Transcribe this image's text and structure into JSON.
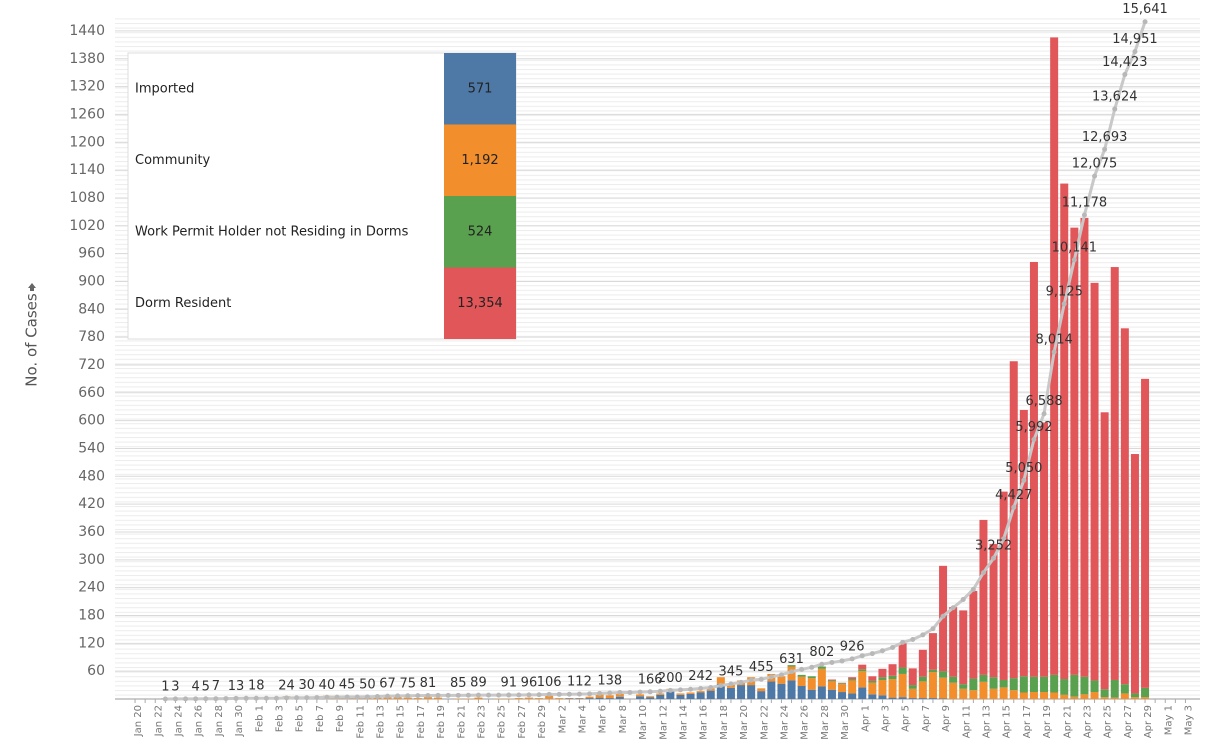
{
  "chart_data": {
    "type": "bar",
    "y_label": "No. of Cases",
    "categories": [
      "Jan 20",
      null,
      "Jan 22",
      null,
      "Jan 24",
      null,
      "Jan 26",
      null,
      "Jan 28",
      null,
      "Jan 30",
      null,
      "Feb 1",
      null,
      "Feb 3",
      null,
      "Feb 5",
      null,
      "Feb 7",
      null,
      "Feb 9",
      null,
      "Feb 11",
      null,
      "Feb 13",
      null,
      "Feb 15",
      null,
      "Feb 17",
      null,
      "Feb 19",
      null,
      "Feb 21",
      null,
      "Feb 23",
      null,
      "Feb 25",
      null,
      "Feb 27",
      null,
      "Feb 29",
      null,
      "Mar 2",
      null,
      "Mar 4",
      null,
      "Mar 6",
      null,
      "Mar 8",
      null,
      "Mar 10",
      null,
      "Mar 12",
      null,
      "Mar 14",
      null,
      "Mar 16",
      null,
      "Mar 18",
      null,
      "Mar 20",
      null,
      "Mar 22",
      null,
      "Mar 24",
      null,
      "Mar 26",
      null,
      "Mar 28",
      null,
      "Mar 30",
      null,
      "Apr 1",
      null,
      "Apr 3",
      null,
      "Apr 5",
      null,
      "Apr 7",
      null,
      "Apr 9",
      null,
      "Apr 11",
      null,
      "Apr 13",
      null,
      "Apr 15",
      null,
      "Apr 17",
      null,
      "Apr 19",
      null,
      "Apr 21",
      null,
      "Apr 23",
      null,
      "Apr 25",
      null,
      "Apr 27",
      null,
      "Apr 29",
      null,
      "May 1",
      null,
      "May 3"
    ],
    "series": [
      {
        "name": "Imported",
        "color": "#4e79a7",
        "total": 571,
        "values": [
          0,
          0,
          0,
          1,
          2,
          0,
          1,
          1,
          2,
          3,
          3,
          3,
          0,
          0,
          0,
          0,
          0,
          0,
          0,
          0,
          0,
          0,
          0,
          0,
          0,
          0,
          0,
          0,
          0,
          0,
          0,
          0,
          0,
          0,
          0,
          0,
          0,
          0,
          0,
          0,
          0,
          0,
          0,
          1,
          1,
          2,
          3,
          2,
          5,
          0,
          6,
          4,
          9,
          17,
          9,
          11,
          14,
          18,
          33,
          24,
          30,
          30,
          17,
          38,
          33,
          40,
          28,
          20,
          27,
          20,
          15,
          12,
          25,
          10,
          8,
          3,
          4,
          2,
          2,
          2,
          1,
          0,
          0,
          0,
          0,
          0,
          0,
          0,
          0,
          0,
          0,
          0,
          0,
          0,
          0,
          0,
          0,
          0,
          0,
          0,
          0,
          null,
          null,
          null,
          null
        ]
      },
      {
        "name": "Community",
        "color": "#f28e2b",
        "total": {
          "value": 1192,
          "label": "1,192"
        },
        "values": [
          0,
          0,
          0,
          0,
          0,
          0,
          0,
          0,
          0,
          0,
          0,
          0,
          2,
          0,
          0,
          6,
          4,
          2,
          3,
          7,
          3,
          2,
          2,
          3,
          8,
          9,
          5,
          3,
          2,
          4,
          3,
          0,
          1,
          1,
          3,
          0,
          1,
          1,
          2,
          3,
          2,
          8,
          2,
          1,
          1,
          3,
          10,
          6,
          7,
          0,
          4,
          2,
          3,
          5,
          3,
          3,
          3,
          5,
          14,
          8,
          10,
          17,
          6,
          16,
          16,
          30,
          20,
          25,
          38,
          18,
          17,
          28,
          35,
          25,
          33,
          40,
          50,
          20,
          36,
          56,
          45,
          35,
          22,
          19,
          37,
          22,
          25,
          19,
          14,
          15,
          15,
          14,
          9,
          5,
          10,
          15,
          4,
          3,
          12,
          4,
          4,
          null,
          null,
          null,
          null
        ]
      },
      {
        "name": "Work Permit Holder not Residing in Dorms",
        "color": "#59a14f",
        "total": 524,
        "values": [
          0,
          0,
          0,
          0,
          0,
          0,
          0,
          0,
          0,
          0,
          0,
          0,
          0,
          0,
          0,
          0,
          0,
          0,
          0,
          0,
          0,
          0,
          0,
          0,
          0,
          0,
          0,
          0,
          0,
          0,
          0,
          0,
          0,
          0,
          0,
          0,
          0,
          0,
          0,
          0,
          0,
          0,
          0,
          0,
          0,
          0,
          0,
          0,
          0,
          0,
          0,
          0,
          0,
          0,
          0,
          0,
          0,
          0,
          0,
          0,
          0,
          0,
          0,
          0,
          0,
          3,
          4,
          4,
          5,
          2,
          2,
          3,
          4,
          4,
          6,
          7,
          14,
          8,
          10,
          5,
          14,
          13,
          10,
          25,
          15,
          25,
          16,
          26,
          35,
          33,
          33,
          38,
          34,
          47,
          38,
          25,
          17,
          38,
          20,
          8,
          20,
          null,
          null,
          null,
          null
        ]
      },
      {
        "name": "Dorm Resident",
        "color": "#e15759",
        "total": {
          "value": 13354,
          "label": "13,354"
        },
        "values": [
          0,
          0,
          0,
          0,
          0,
          0,
          0,
          0,
          0,
          0,
          0,
          0,
          0,
          0,
          0,
          0,
          0,
          0,
          0,
          0,
          0,
          0,
          0,
          0,
          0,
          0,
          0,
          0,
          0,
          0,
          0,
          0,
          0,
          0,
          0,
          0,
          0,
          0,
          0,
          0,
          0,
          0,
          0,
          0,
          0,
          0,
          0,
          0,
          0,
          0,
          0,
          0,
          0,
          0,
          0,
          0,
          0,
          0,
          0,
          0,
          0,
          0,
          0,
          0,
          0,
          0,
          0,
          0,
          0,
          2,
          1,
          4,
          10,
          10,
          18,
          25,
          52,
          36,
          58,
          79,
          227,
          150,
          159,
          189,
          334,
          287,
          406,
          683,
          574,
          894,
          548,
          1374,
          1068,
          964,
          989,
          857,
          597,
          890,
          767,
          516,
          666,
          null,
          null,
          null,
          null
        ]
      }
    ],
    "line": {
      "type": "line",
      "axis": "y2",
      "color": "#c8c8c8",
      "values": [
        null,
        null,
        null,
        1,
        3,
        3,
        4,
        5,
        7,
        10,
        13,
        16,
        18,
        18,
        18,
        24,
        28,
        30,
        33,
        40,
        43,
        45,
        47,
        50,
        58,
        67,
        72,
        75,
        77,
        81,
        84,
        84,
        85,
        86,
        89,
        89,
        90,
        91,
        93,
        96,
        98,
        106,
        108,
        110,
        112,
        117,
        130,
        138,
        150,
        150,
        160,
        166,
        178,
        200,
        212,
        226,
        242,
        266,
        313,
        345,
        385,
        432,
        455,
        509,
        558,
        631,
        683,
        732,
        802,
        844,
        879,
        926,
        1000,
        1049,
        1114,
        1189,
        1309,
        1375,
        1481,
        1623,
        1910,
        2108,
        2299,
        2532,
        2918,
        3252,
        3699,
        4427,
        5050,
        5992,
        6588,
        8014,
        9125,
        10141,
        11178,
        12075,
        12693,
        13624,
        14423,
        14951,
        15641,
        null,
        null,
        null,
        null
      ],
      "value_labels": [
        null,
        null,
        null,
        "1",
        "3",
        null,
        "4",
        "5",
        "7",
        null,
        "13",
        null,
        "18",
        null,
        null,
        "24",
        null,
        "30",
        null,
        "40",
        null,
        "45",
        null,
        "50",
        null,
        "67",
        null,
        "75",
        null,
        "81",
        null,
        null,
        "85",
        null,
        "89",
        null,
        null,
        "91",
        null,
        "96",
        null,
        "106",
        null,
        null,
        "112",
        null,
        null,
        "138",
        null,
        null,
        null,
        "166",
        null,
        "200",
        null,
        null,
        "242",
        null,
        null,
        "345",
        null,
        null,
        "455",
        null,
        null,
        "631",
        null,
        null,
        "802",
        null,
        null,
        "926",
        null,
        null,
        null,
        null,
        null,
        null,
        null,
        null,
        null,
        null,
        null,
        null,
        null,
        "3,252",
        null,
        "4,427",
        "5,050",
        "5,992",
        "6,588",
        "8,014",
        "9,125",
        "10,141",
        "11,178",
        "12,075",
        "12,693",
        "13,624",
        "14,423",
        "14,951",
        "15,641",
        null,
        null,
        null,
        null
      ]
    },
    "ylim": [
      0,
      1470
    ],
    "yticks": [
      60,
      120,
      180,
      240,
      300,
      360,
      420,
      480,
      540,
      600,
      660,
      720,
      780,
      840,
      900,
      960,
      1020,
      1080,
      1140,
      1200,
      1260,
      1320,
      1380,
      1440
    ],
    "y2lim": [
      0,
      15750
    ],
    "grid": true
  }
}
